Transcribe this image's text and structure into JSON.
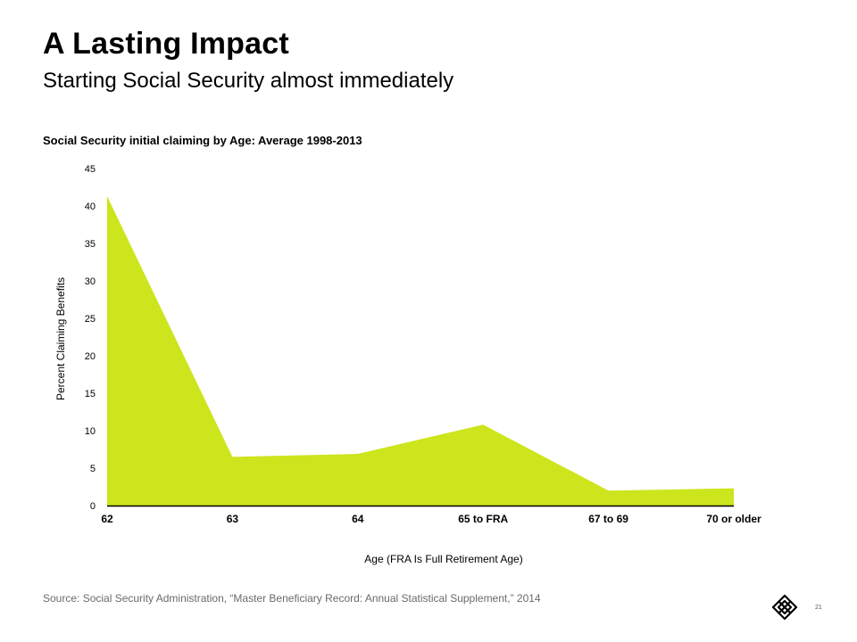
{
  "slide": {
    "title": "A Lasting Impact",
    "subtitle": "Starting Social Security almost immediately",
    "source": "Source: Social Security Administration, “Master Beneficiary Record:  Annual Statistical Supplement,” 2014",
    "page_number": "21"
  },
  "chart_data": {
    "type": "area",
    "title": "Social Security initial claiming by Age: Average 1998-2013",
    "xlabel": "Age (FRA Is Full Retirement Age)",
    "ylabel": "Percent Claiming Benefits",
    "categories": [
      "62",
      "63",
      "64",
      "65 to FRA",
      "67 to 69",
      "70 or older"
    ],
    "values": [
      41.3,
      6.5,
      6.9,
      10.8,
      2.0,
      2.3
    ],
    "ylim": [
      0,
      45
    ],
    "yticks": [
      0,
      5,
      10,
      15,
      20,
      25,
      30,
      35,
      40,
      45
    ],
    "grid": false,
    "legend": "none",
    "fill_color": "#cde51d"
  }
}
